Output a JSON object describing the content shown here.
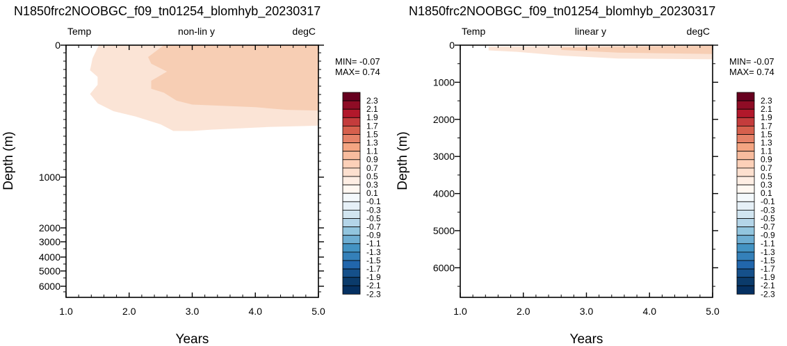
{
  "chart_data": [
    {
      "type": "heatmap",
      "title": "N1850frc2NOOBGC_f09_tn01254_blomhyb_20230317",
      "left_label": "Temp",
      "center_label": "non-lin y",
      "right_label": "degC",
      "xlabel": "Years",
      "ylabel": "Depth (m)",
      "xlim": [
        1.0,
        5.0
      ],
      "x_ticks": [
        "1.0",
        "2.0",
        "3.0",
        "4.0",
        "5.0"
      ],
      "y_scale": "non-linear",
      "y_ticks": [
        "0",
        "1000",
        "2000",
        "3000",
        "4000",
        "5000",
        "6000"
      ],
      "min_label": "MIN= -0.07",
      "max_label": "MAX=  0.74",
      "contours": [
        {
          "level": "0.1 to 0.3",
          "color": "#fbe4d6",
          "pts": [
            [
              1.52,
              0
            ],
            [
              5.0,
              0
            ],
            [
              5.0,
              610
            ],
            [
              4.2,
              620
            ],
            [
              3.3,
              640
            ],
            [
              3.0,
              650
            ],
            [
              2.7,
              650
            ],
            [
              2.5,
              600
            ],
            [
              2.1,
              540
            ],
            [
              1.75,
              500
            ],
            [
              1.5,
              440
            ],
            [
              1.38,
              370
            ],
            [
              1.5,
              300
            ],
            [
              1.5,
              240
            ],
            [
              1.38,
              190
            ],
            [
              1.42,
              100
            ]
          ]
        },
        {
          "level": "0.3 to 0.5",
          "color": "#f7ceb4",
          "pts": [
            [
              2.55,
              0
            ],
            [
              5.0,
              0
            ],
            [
              5.0,
              495
            ],
            [
              4.5,
              490
            ],
            [
              4.0,
              470
            ],
            [
              3.5,
              460
            ],
            [
              3.0,
              450
            ],
            [
              2.75,
              420
            ],
            [
              2.55,
              360
            ],
            [
              2.35,
              330
            ],
            [
              2.35,
              270
            ],
            [
              2.6,
              200
            ],
            [
              2.35,
              140
            ],
            [
              2.3,
              90
            ]
          ]
        }
      ]
    },
    {
      "type": "heatmap",
      "title": "N1850frc2NOOBGC_f09_tn01254_blomhyb_20230317",
      "left_label": "Temp",
      "center_label": "linear y",
      "right_label": "degC",
      "xlabel": "Years",
      "ylabel": "Depth (m)",
      "xlim": [
        1.0,
        5.0
      ],
      "x_ticks": [
        "1.0",
        "2.0",
        "3.0",
        "4.0",
        "5.0"
      ],
      "y_scale": "linear",
      "ylim": [
        0,
        6800
      ],
      "y_ticks": [
        "0",
        "1000",
        "2000",
        "3000",
        "4000",
        "5000",
        "6000"
      ],
      "min_label": "MIN= -0.07",
      "max_label": "MAX=  0.74",
      "contours": [
        {
          "level": "0.1 to 0.3",
          "color": "#fbe4d6",
          "pts": [
            [
              1.45,
              40
            ],
            [
              5.0,
              0
            ],
            [
              5.0,
              380
            ],
            [
              3.5,
              360
            ],
            [
              2.6,
              280
            ],
            [
              1.9,
              180
            ],
            [
              1.45,
              140
            ]
          ]
        },
        {
          "level": "0.3 to 0.5",
          "color": "#f7ceb4",
          "pts": [
            [
              2.6,
              60
            ],
            [
              5.0,
              20
            ],
            [
              5.0,
              240
            ],
            [
              3.5,
              200
            ],
            [
              2.6,
              130
            ]
          ]
        }
      ]
    }
  ],
  "colorbar": {
    "labels": [
      "2.3",
      "2.1",
      "1.9",
      "1.7",
      "1.5",
      "1.3",
      "1.1",
      "0.9",
      "0.7",
      "0.5",
      "0.3",
      "0.1",
      "-0.1",
      "-0.3",
      "-0.5",
      "-0.7",
      "-0.9",
      "-1.1",
      "-1.3",
      "-1.5",
      "-1.7",
      "-1.9",
      "-2.1",
      "-2.3"
    ],
    "colors": [
      "#67001f",
      "#8e0c25",
      "#b2182b",
      "#c43c3c",
      "#d6604d",
      "#e58268",
      "#f4a582",
      "#f8bc9e",
      "#fcd0b8",
      "#fde0cf",
      "#feeee4",
      "#fff8f2",
      "#f4f9fc",
      "#e6f0f7",
      "#d1e5f0",
      "#b4d5e8",
      "#92c5de",
      "#6eaed2",
      "#4393c3",
      "#3480b9",
      "#2166ac",
      "#15508a",
      "#0b3b6b",
      "#053061"
    ]
  }
}
